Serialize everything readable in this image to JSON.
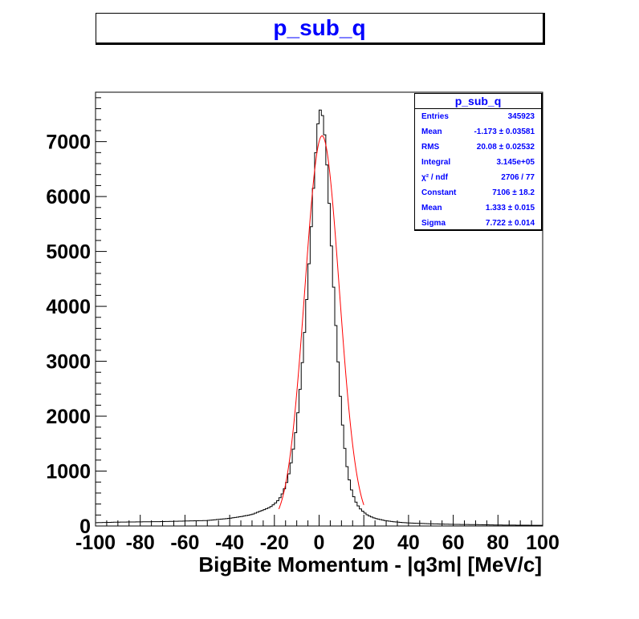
{
  "title": "p_sub_q",
  "stats": {
    "title": "p_sub_q",
    "rows": [
      {
        "label": "Entries",
        "value": "345923"
      },
      {
        "label": "Mean",
        "value": "-1.173 ± 0.03581"
      },
      {
        "label": "RMS",
        "value": "20.08 ± 0.02532"
      },
      {
        "label": "Integral",
        "value": "3.145e+05"
      },
      {
        "label": "χ² / ndf",
        "value": "2706 / 77"
      },
      {
        "label": "Constant",
        "value": "7106 ± 18.2"
      },
      {
        "label": "Mean",
        "value": "1.333 ± 0.015"
      },
      {
        "label": "Sigma",
        "value": "7.722 ± 0.014"
      }
    ]
  },
  "chart_data": {
    "type": "histogram",
    "title": "p_sub_q",
    "xlabel": "BigBite Momentum - |q3m|  [MeV/c]",
    "ylabel": "",
    "xlim": [
      -100,
      100
    ],
    "ylim": [
      0,
      7900
    ],
    "xticks": [
      -100,
      -80,
      -60,
      -40,
      -20,
      0,
      20,
      40,
      60,
      80,
      100
    ],
    "yticks": [
      0,
      1000,
      2000,
      3000,
      4000,
      5000,
      6000,
      7000
    ],
    "bin_count": 200,
    "series": [
      {
        "style": "step",
        "color": "#000000",
        "x": [
          -100,
          -90,
          -80,
          -70,
          -60,
          -50,
          -40,
          -35,
          -30,
          -25,
          -22,
          -20,
          -18,
          -16,
          -14,
          -12,
          -10,
          -8,
          -6,
          -4,
          -3,
          -2,
          -1,
          0,
          1,
          2,
          3,
          4,
          5,
          6,
          8,
          10,
          12,
          14,
          16,
          18,
          20,
          22,
          25,
          30,
          35,
          40,
          50,
          60,
          70,
          80,
          90,
          100
        ],
        "values": [
          60,
          70,
          75,
          80,
          90,
          100,
          140,
          170,
          210,
          290,
          340,
          400,
          480,
          620,
          850,
          1250,
          1850,
          2700,
          3800,
          5100,
          5800,
          6500,
          7100,
          7550,
          7600,
          7350,
          6900,
          6250,
          5500,
          4700,
          3300,
          2050,
          1200,
          720,
          470,
          330,
          250,
          190,
          140,
          95,
          70,
          55,
          40,
          30,
          25,
          18,
          15,
          12
        ]
      },
      {
        "style": "line",
        "color": "#ff0000",
        "function": "gaus",
        "constant": 7106,
        "mean": 1.333,
        "sigma": 7.722,
        "range": [
          -18,
          20
        ]
      }
    ]
  }
}
